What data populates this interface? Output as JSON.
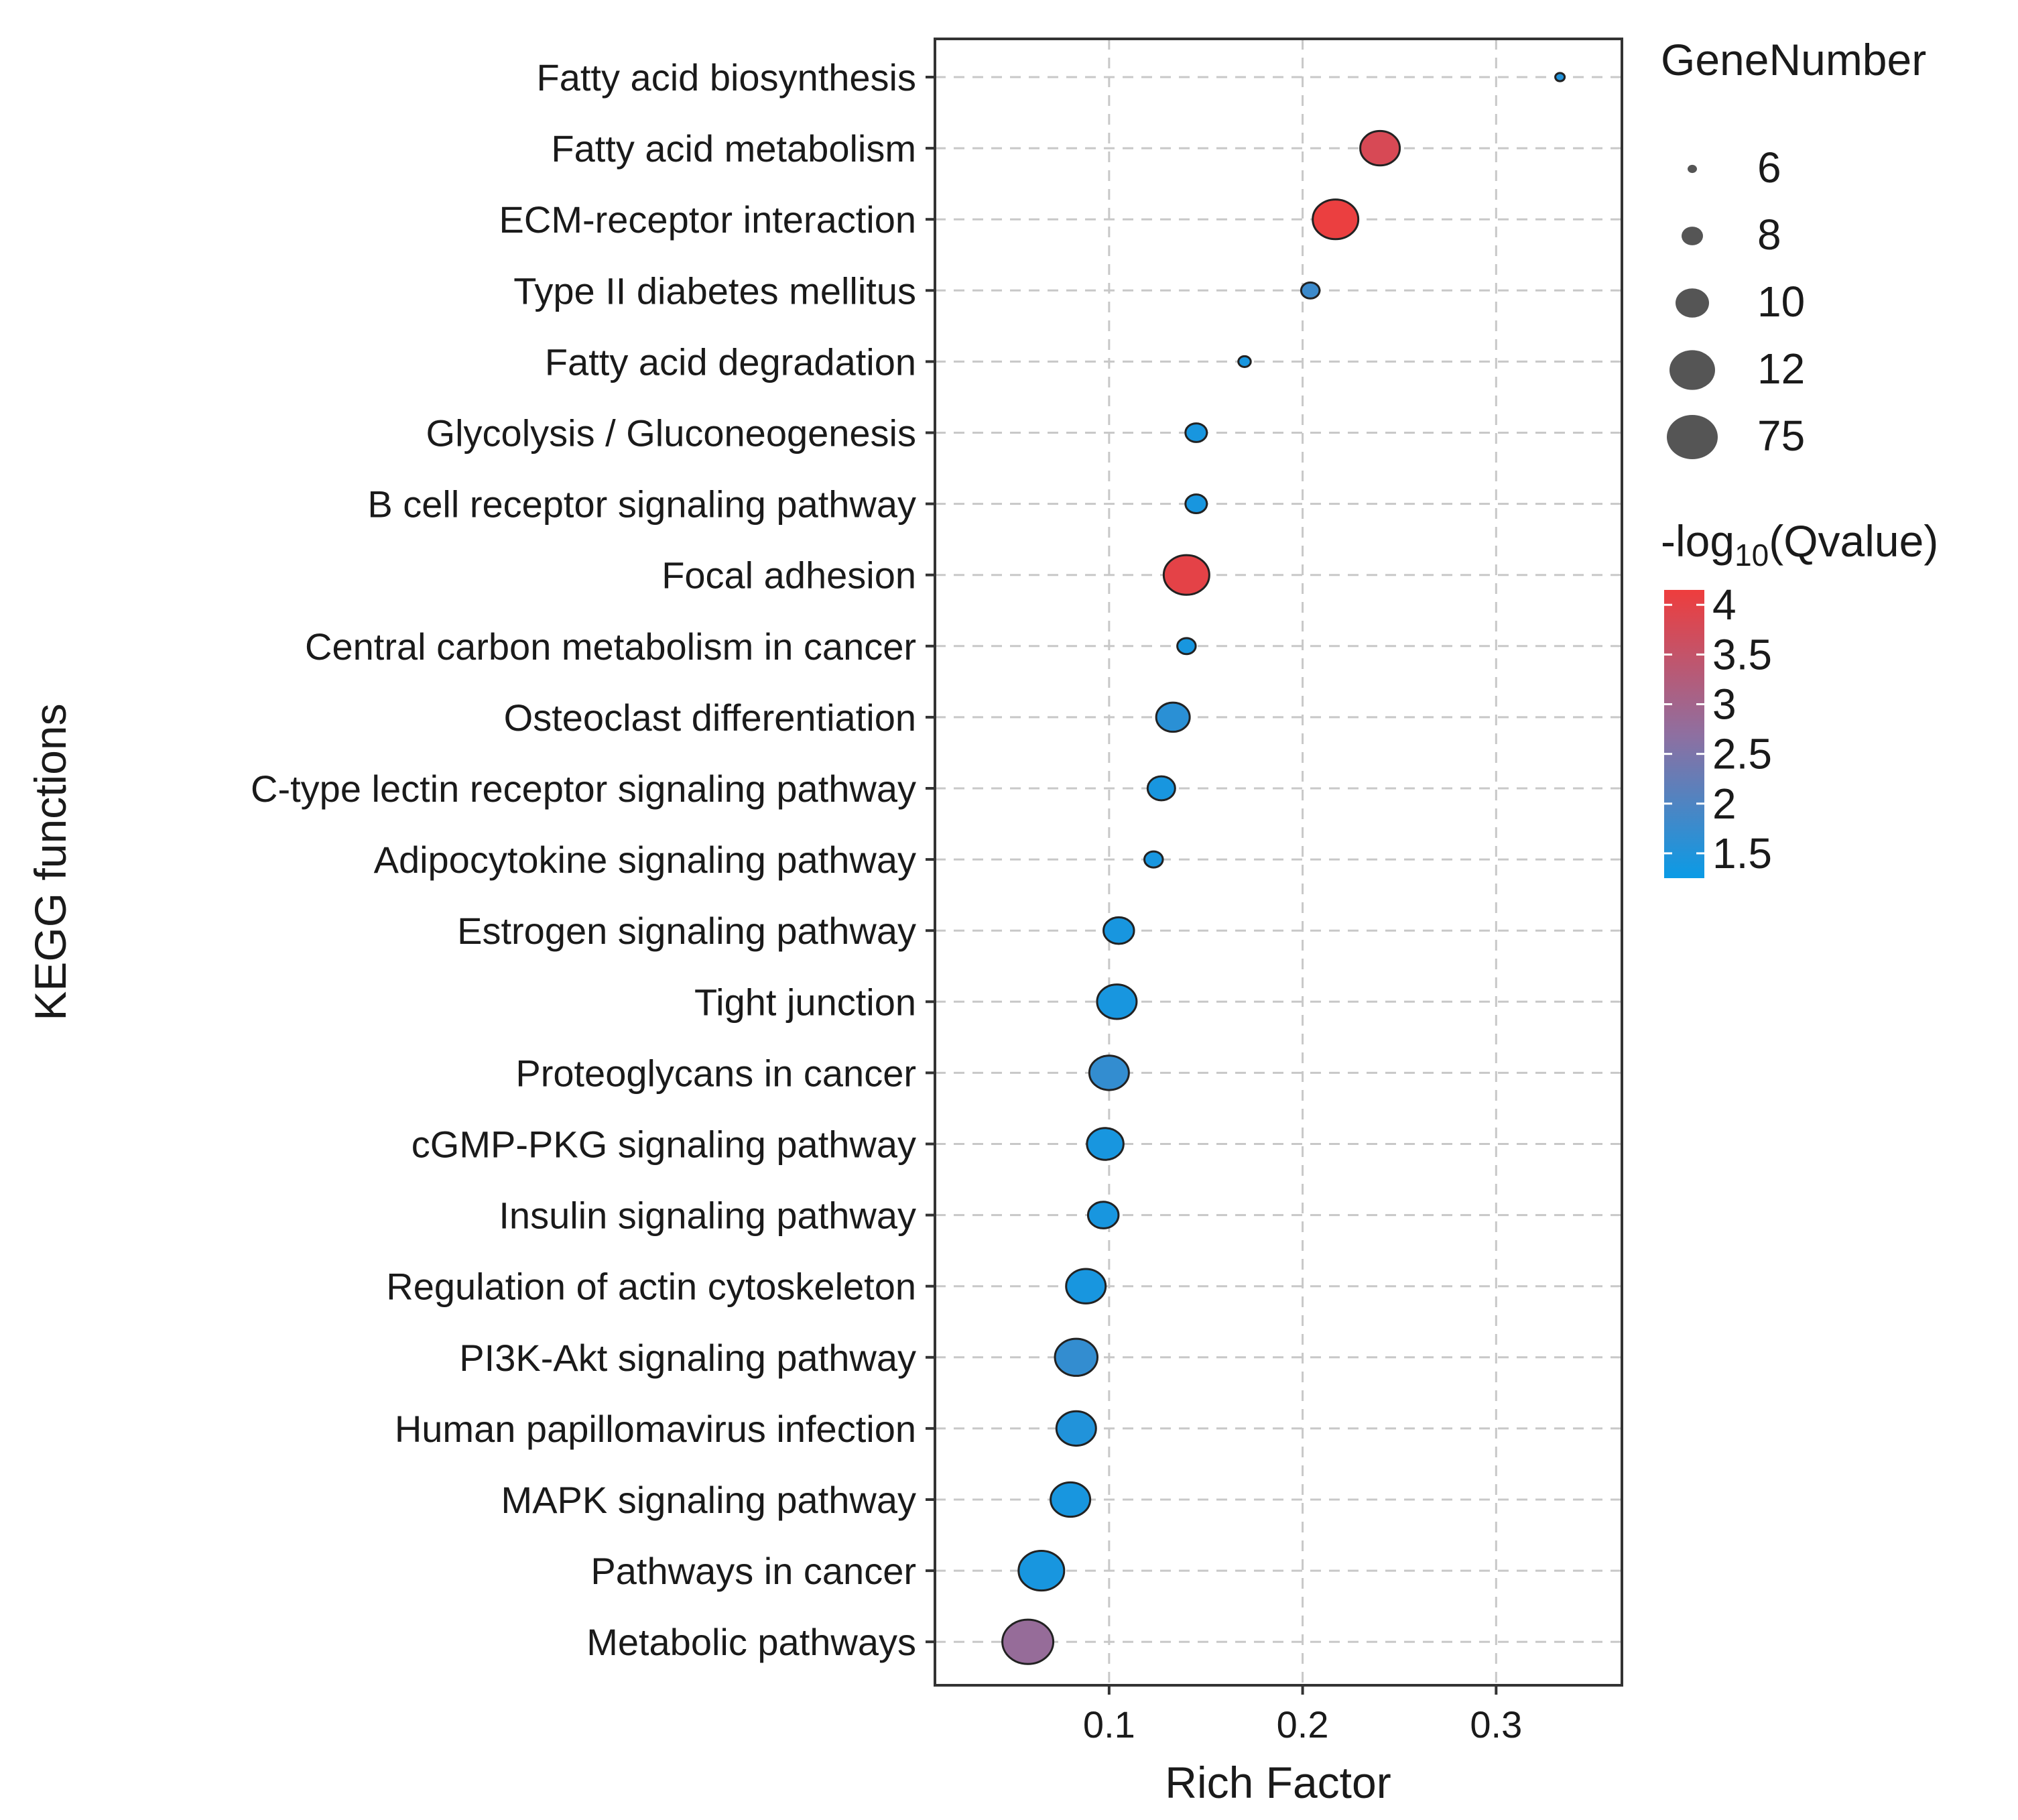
{
  "chart_data": {
    "type": "scatter",
    "xlabel": "Rich Factor",
    "ylabel": "KEGG functions",
    "xlim": [
      0.01,
      0.365
    ],
    "xticks": [
      "0.1",
      "0.2",
      "0.3"
    ],
    "grid": true,
    "categories": [
      "Fatty acid biosynthesis",
      "Fatty acid metabolism",
      "ECM-receptor interaction",
      "Type II diabetes mellitus",
      "Fatty acid degradation",
      "Glycolysis / Gluconeogenesis",
      "B cell receptor signaling pathway",
      "Focal adhesion",
      "Central carbon metabolism in cancer",
      "Osteoclast differentiation",
      "C-type lectin receptor signaling pathway",
      "Adipocytokine signaling pathway",
      "Estrogen signaling pathway",
      "Tight junction",
      "Proteoglycans in cancer",
      "cGMP-PKG signaling pathway",
      "Insulin signaling pathway",
      "Regulation of actin cytoskeleton",
      "PI3K-Akt signaling pathway",
      "Human papillomavirus infection",
      "MAPK signaling pathway",
      "Pathways in cancer",
      "Metabolic pathways"
    ],
    "points": [
      {
        "pathway": "Fatty acid biosynthesis",
        "rich_factor": 0.333,
        "gene_number": 6,
        "neg_log10_q": 1.5
      },
      {
        "pathway": "Fatty acid metabolism",
        "rich_factor": 0.24,
        "gene_number": 11,
        "neg_log10_q": 3.8
      },
      {
        "pathway": "ECM-receptor interaction",
        "rich_factor": 0.217,
        "gene_number": 12,
        "neg_log10_q": 4.1
      },
      {
        "pathway": "Type II diabetes mellitus",
        "rich_factor": 0.204,
        "gene_number": 7.5,
        "neg_log10_q": 1.8
      },
      {
        "pathway": "Fatty acid degradation",
        "rich_factor": 0.17,
        "gene_number": 6.5,
        "neg_log10_q": 1.4
      },
      {
        "pathway": "Glycolysis / Gluconeogenesis",
        "rich_factor": 0.145,
        "gene_number": 8,
        "neg_log10_q": 1.4
      },
      {
        "pathway": "B cell receptor signaling pathway",
        "rich_factor": 0.145,
        "gene_number": 8,
        "neg_log10_q": 1.4
      },
      {
        "pathway": "Focal adhesion",
        "rich_factor": 0.14,
        "gene_number": 12,
        "neg_log10_q": 4.0
      },
      {
        "pathway": "Central carbon metabolism in cancer",
        "rich_factor": 0.14,
        "gene_number": 7.5,
        "neg_log10_q": 1.4
      },
      {
        "pathway": "Osteoclast differentiation",
        "rich_factor": 0.133,
        "gene_number": 10,
        "neg_log10_q": 1.6
      },
      {
        "pathway": "C-type lectin receptor signaling pathway",
        "rich_factor": 0.127,
        "gene_number": 9,
        "neg_log10_q": 1.4
      },
      {
        "pathway": "Adipocytokine signaling pathway",
        "rich_factor": 0.123,
        "gene_number": 7.5,
        "neg_log10_q": 1.4
      },
      {
        "pathway": "Estrogen signaling pathway",
        "rich_factor": 0.105,
        "gene_number": 9.5,
        "neg_log10_q": 1.4
      },
      {
        "pathway": "Tight junction",
        "rich_factor": 0.104,
        "gene_number": 11,
        "neg_log10_q": 1.4
      },
      {
        "pathway": "Proteoglycans in cancer",
        "rich_factor": 0.1,
        "gene_number": 11,
        "neg_log10_q": 1.7
      },
      {
        "pathway": "cGMP-PKG signaling pathway",
        "rich_factor": 0.098,
        "gene_number": 10.5,
        "neg_log10_q": 1.4
      },
      {
        "pathway": "Insulin signaling pathway",
        "rich_factor": 0.097,
        "gene_number": 9.5,
        "neg_log10_q": 1.4
      },
      {
        "pathway": "Regulation of actin cytoskeleton",
        "rich_factor": 0.088,
        "gene_number": 11,
        "neg_log10_q": 1.4
      },
      {
        "pathway": "PI3K-Akt signaling pathway",
        "rich_factor": 0.083,
        "gene_number": 11.5,
        "neg_log10_q": 1.7
      },
      {
        "pathway": "Human papillomavirus infection",
        "rich_factor": 0.083,
        "gene_number": 11,
        "neg_log10_q": 1.5
      },
      {
        "pathway": "MAPK signaling pathway",
        "rich_factor": 0.08,
        "gene_number": 11,
        "neg_log10_q": 1.4
      },
      {
        "pathway": "Pathways in cancer",
        "rich_factor": 0.065,
        "gene_number": 12,
        "neg_log10_q": 1.4
      },
      {
        "pathway": "Metabolic pathways",
        "rich_factor": 0.058,
        "gene_number": 75,
        "neg_log10_q": 2.8
      }
    ],
    "size_legend": {
      "title": "GeneNumber",
      "values": [
        6,
        8,
        10,
        12,
        75
      ],
      "labels": [
        "6",
        "8",
        "10",
        "12",
        "75"
      ]
    },
    "color_legend": {
      "title_main": "-log",
      "title_sub": "10",
      "title_tail": "(Qvalue)",
      "min": 1.25,
      "max": 4.15,
      "ticks": [
        4,
        3.5,
        3,
        2.5,
        2,
        1.5
      ],
      "tick_labels": [
        "4",
        "3.5",
        "3",
        "2.5",
        "2",
        "1.5"
      ],
      "color_low": "#0a9be6",
      "color_mid": "#8f6fa0",
      "color_high": "#ee3d3d"
    },
    "legend_position": "right"
  }
}
